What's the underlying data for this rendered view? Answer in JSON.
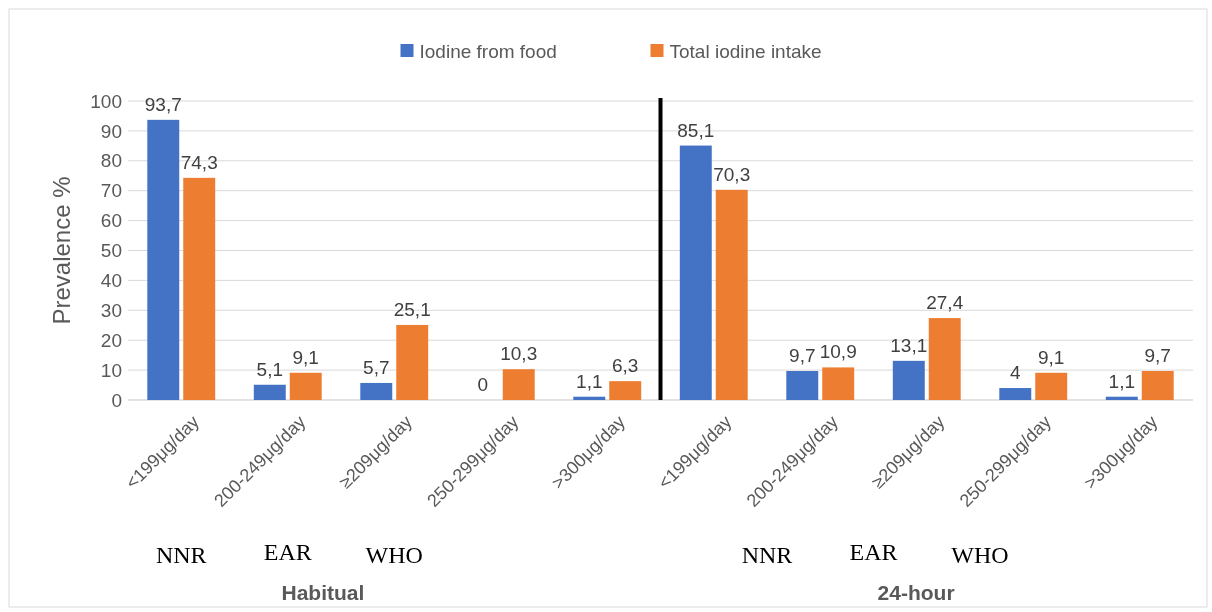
{
  "chart_data": [
    {
      "type": "bar",
      "ylabel": "Prevalence %",
      "categories": [
        "<199μg/day",
        "200-249μg/day",
        "≥209μg/day",
        "250-299μg/day",
        ">300μg/day"
      ],
      "series": [
        {
          "name": "Iodine from food",
          "color": "#4472c4",
          "values": [
            93.7,
            5.1,
            5.7,
            0,
            1.1
          ],
          "value_labels": [
            "93,7",
            "5,1",
            "5,7",
            "0",
            "1,1"
          ]
        },
        {
          "name": "Total iodine intake",
          "color": "#ed7d31",
          "values": [
            74.3,
            9.1,
            25.1,
            10.3,
            6.3
          ],
          "value_labels": [
            "74,3",
            "9,1",
            "25,1",
            "10,3",
            "6,3"
          ]
        }
      ],
      "ylim": [
        0,
        100
      ],
      "yticks": [
        0,
        10,
        20,
        30,
        40,
        50,
        60,
        70,
        80,
        90,
        100
      ],
      "grid": "y",
      "legend": "top",
      "annotations": [
        "NNR",
        "EAR",
        "WHO",
        "Habitual"
      ]
    },
    {
      "type": "bar",
      "categories": [
        "<199μg/day",
        "200-249μg/day",
        "≥209μg/day",
        "250-299μg/day",
        ">300μg/day"
      ],
      "series": [
        {
          "color": "#4472c4",
          "values": [
            85.1,
            9.7,
            13.1,
            4,
            1.1
          ],
          "value_labels": [
            "85,1",
            "9,7",
            "13,1",
            "4",
            "1,1"
          ]
        },
        {
          "color": "#ed7d31",
          "values": [
            70.3,
            10.9,
            27.4,
            9.1,
            9.7
          ],
          "value_labels": [
            "70,3",
            "10,9",
            "27,4",
            "9,1",
            "9,7"
          ]
        }
      ],
      "ylim": [
        0,
        100
      ],
      "yticks": [
        0,
        10,
        20,
        30,
        40,
        50,
        60,
        70,
        80,
        90,
        100
      ],
      "grid": "y",
      "tick_labels": "x",
      "annotations": [
        "NNR",
        "EAR",
        "WHO",
        "24-hour"
      ]
    }
  ]
}
